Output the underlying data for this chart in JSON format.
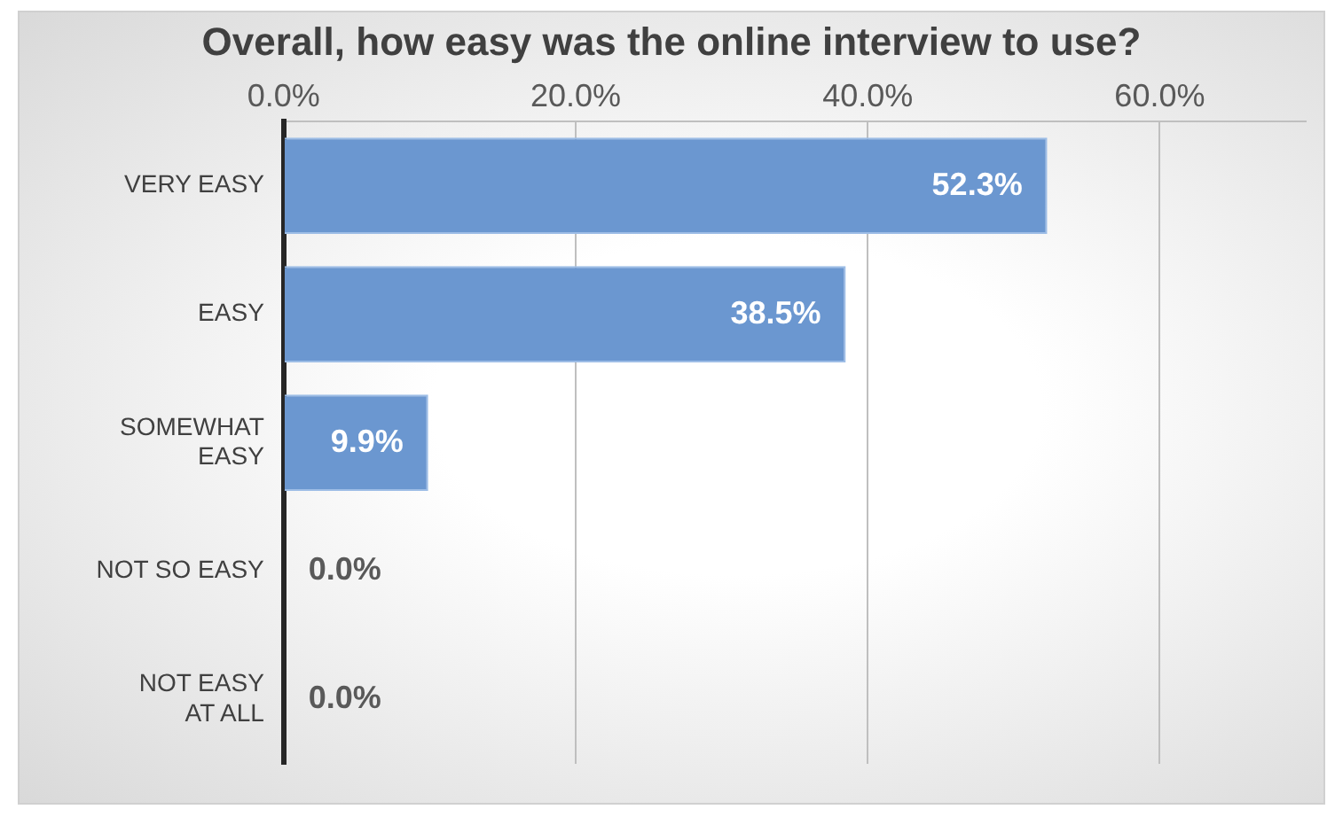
{
  "chart_data": {
    "type": "bar",
    "orientation": "horizontal",
    "title": "Overall, how easy was the online interview to use?",
    "categories": [
      "VERY EASY",
      "EASY",
      "SOMEWHAT EASY",
      "NOT SO EASY",
      "NOT EASY AT ALL"
    ],
    "values": [
      52.3,
      38.5,
      9.9,
      0,
      0
    ],
    "value_labels": [
      "52.3%",
      "38.5%",
      "9.9%",
      "0.0%",
      "0.0%"
    ],
    "color": "#6b97d0",
    "xlim": [
      0,
      70
    ],
    "xticks": [
      {
        "value": 0,
        "label": "0.0%"
      },
      {
        "value": 20,
        "label": "20.0%"
      },
      {
        "value": 40,
        "label": "40.0%"
      },
      {
        "value": 60,
        "label": "60.0%"
      }
    ],
    "grid": "x",
    "legend": false
  }
}
